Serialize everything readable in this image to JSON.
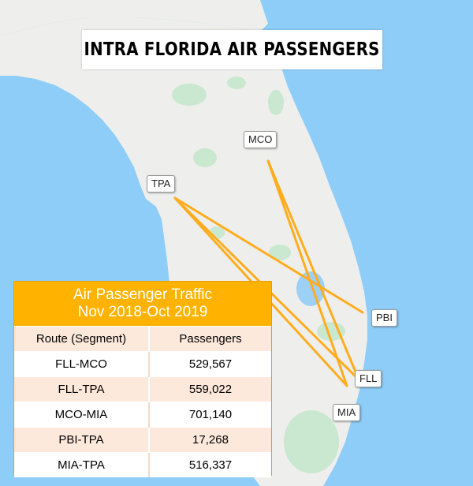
{
  "map": {
    "title": "INTRA FLORIDA AIR PASSENGERS",
    "colors": {
      "water": "#8ecdf8",
      "land": "#eeeeec",
      "parks": "#c9e8cf",
      "lakes": "#9dd0f5",
      "route": "#ffad1f"
    },
    "airports": [
      {
        "code": "MCO"
      },
      {
        "code": "TPA"
      },
      {
        "code": "PBI"
      },
      {
        "code": "FLL"
      },
      {
        "code": "MIA"
      }
    ],
    "routes": [
      "TPA-FLL",
      "TPA-MIA",
      "TPA-PBI",
      "MCO-FLL",
      "MCO-MIA"
    ]
  },
  "traffic": {
    "title_line1": "Air Passenger Traffic",
    "title_line2": "Nov 2018-Oct 2019",
    "col_route": "Route (Segment)",
    "col_passengers": "Passengers",
    "rows": [
      {
        "route": "FLL-MCO",
        "passengers": "529,567"
      },
      {
        "route": "FLL-TPA",
        "passengers": "559,022"
      },
      {
        "route": "MCO-MIA",
        "passengers": "701,140"
      },
      {
        "route": "PBI-TPA",
        "passengers": "17,268"
      },
      {
        "route": "MIA-TPA",
        "passengers": "516,337"
      }
    ]
  }
}
